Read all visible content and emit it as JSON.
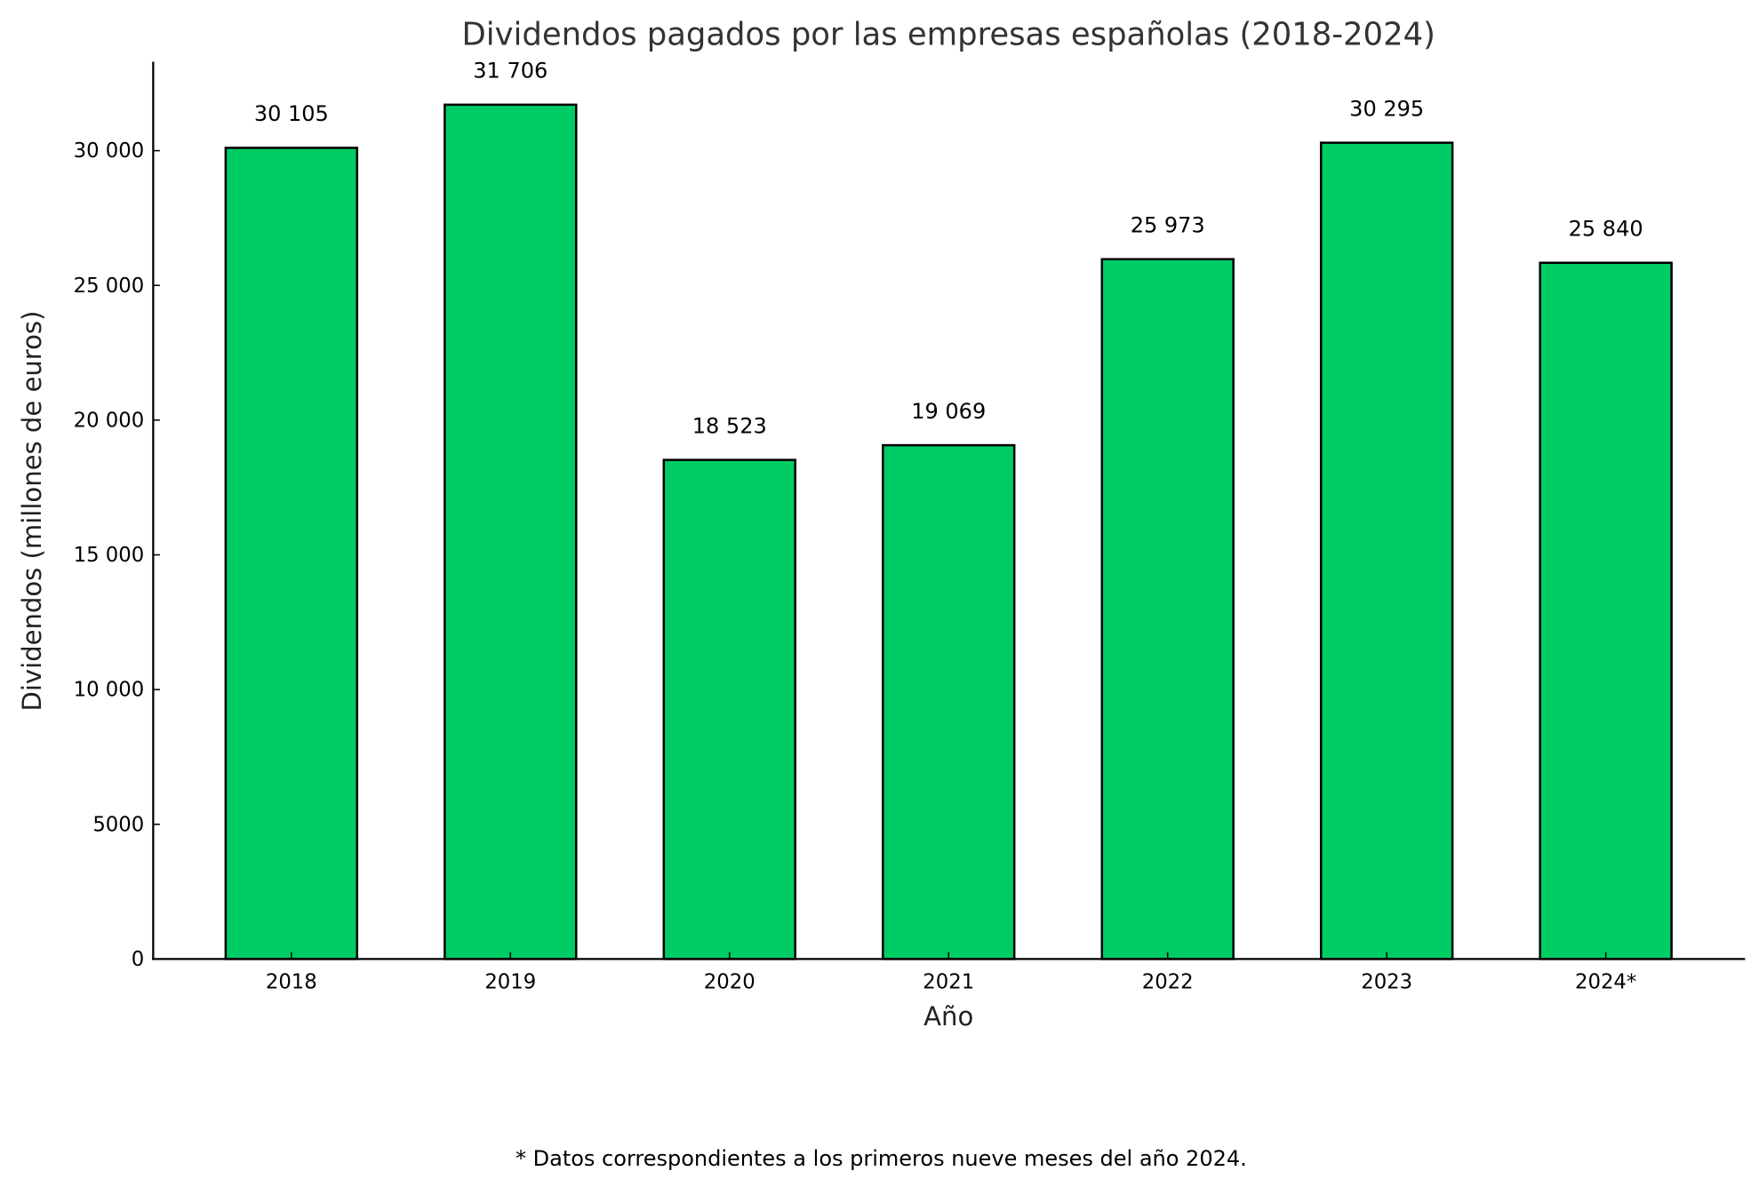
{
  "chart_data": {
    "type": "bar",
    "title": "Dividendos pagados por las empresas españolas (2018-2024)",
    "xlabel": "Año",
    "ylabel": "Dividendos (millones de euros)",
    "categories": [
      "2018",
      "2019",
      "2020",
      "2021",
      "2022",
      "2023",
      "2024*"
    ],
    "values": [
      30105,
      31706,
      18523,
      19069,
      25973,
      30295,
      25840
    ],
    "data_labels": [
      "30 105",
      "31 706",
      "18 523",
      "19 069",
      "25 973",
      "30 295",
      "25 840"
    ],
    "yticks": [
      0,
      5000,
      10000,
      15000,
      20000,
      25000,
      30000
    ],
    "ytick_labels": [
      "0",
      "5000",
      "10 000",
      "15 000",
      "20 000",
      "25 000",
      "30 000"
    ],
    "ylim": [
      0,
      33300
    ],
    "grid": false,
    "bar_color": "#00cc66",
    "edge_color": "#000000",
    "footnote": "* Datos correspondientes a los primeros nueve meses del año 2024."
  }
}
